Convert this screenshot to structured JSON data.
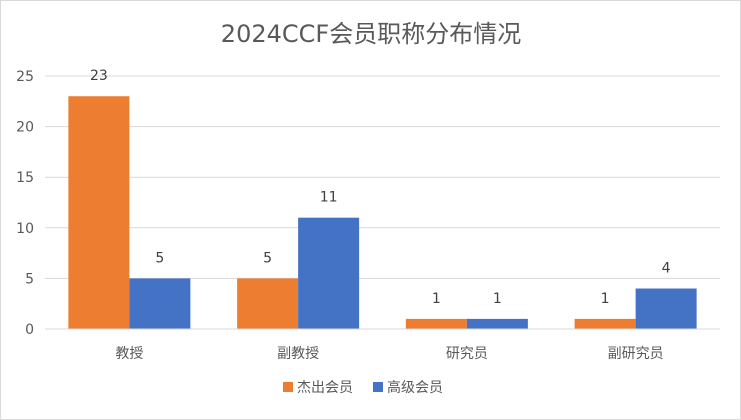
{
  "chart_data": {
    "type": "bar",
    "title": "2024CCF会员职称分布情况",
    "categories": [
      "教授",
      "副教授",
      "研究员",
      "副研究员"
    ],
    "series": [
      {
        "name": "杰出会员",
        "values": [
          23,
          5,
          1,
          1
        ],
        "color": "#ED7D31"
      },
      {
        "name": "高级会员",
        "values": [
          5,
          11,
          1,
          4
        ],
        "color": "#4472C4"
      }
    ],
    "ylim": [
      0,
      25
    ],
    "yticks": [
      0,
      5,
      10,
      15,
      20,
      25
    ],
    "grid": true,
    "legend": "bottom",
    "gridline_color": "#d9d9d9"
  }
}
